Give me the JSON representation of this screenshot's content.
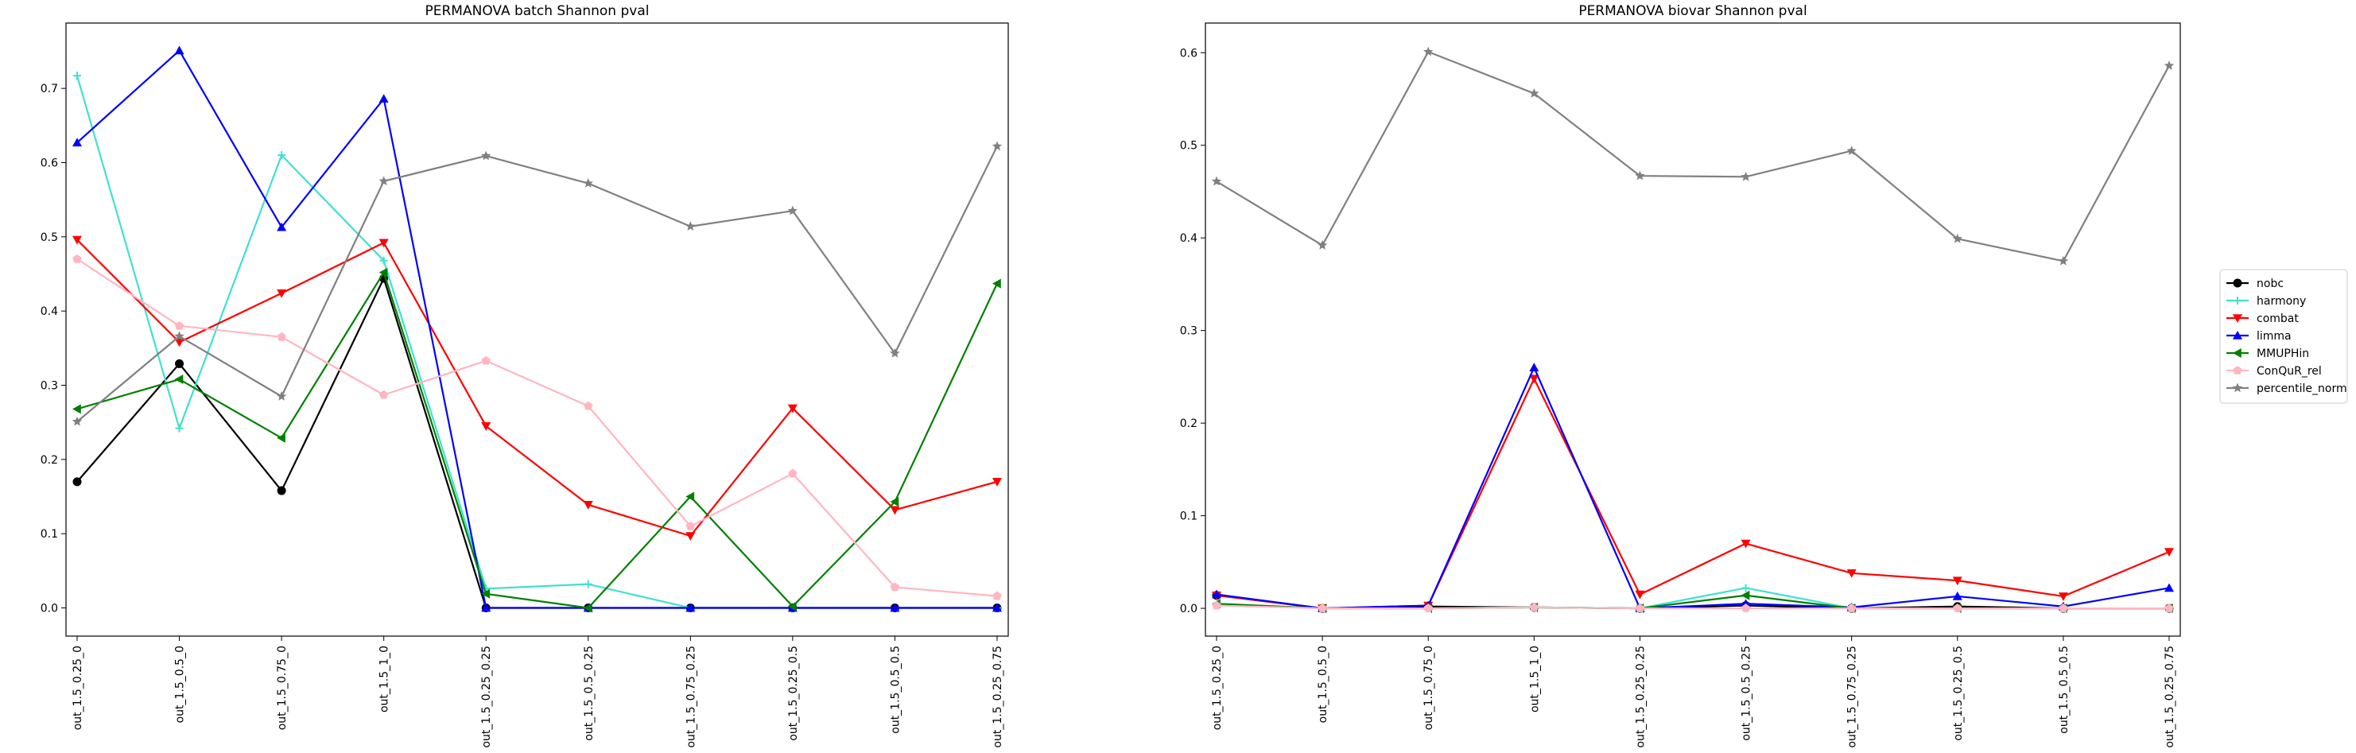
{
  "chart_data": [
    {
      "type": "line",
      "title": "PERMANOVA batch Shannon pval",
      "xlabel": "",
      "ylabel": "",
      "categories": [
        "out_1.5_0.25_0",
        "out_1.5_0.5_0",
        "out_1.5_0.75_0",
        "out_1.5_1_0",
        "out_1.5_0.25_0.25",
        "out_1.5_0.5_0.25",
        "out_1.5_0.75_0.25",
        "out_1.5_0.25_0.5",
        "out_1.5_0.5_0.5",
        "out_1.5_0.25_0.75"
      ],
      "ylim": [
        -0.038,
        0.788
      ],
      "yticks": [
        0.0,
        0.1,
        0.2,
        0.3,
        0.4,
        0.5,
        0.6,
        0.7
      ],
      "grid": false,
      "series": [
        {
          "name": "nobc",
          "values": [
            0.17,
            0.329,
            0.158,
            0.444,
            0.0,
            0.0,
            0.0,
            0.0,
            0.0,
            0.0
          ]
        },
        {
          "name": "harmony",
          "values": [
            0.717,
            0.242,
            0.61,
            0.468,
            0.026,
            0.032,
            0.0,
            0.0,
            0.0,
            0.0
          ]
        },
        {
          "name": "combat",
          "values": [
            0.496,
            0.358,
            0.424,
            0.492,
            0.245,
            0.139,
            0.097,
            0.269,
            0.132,
            0.17
          ]
        },
        {
          "name": "limma",
          "values": [
            0.627,
            0.751,
            0.513,
            0.686,
            0.0,
            0.0,
            0.0,
            0.0,
            0.0,
            0.0
          ]
        },
        {
          "name": "MMUPHin",
          "values": [
            0.268,
            0.308,
            0.229,
            0.452,
            0.019,
            0.0,
            0.15,
            0.002,
            0.143,
            0.437
          ]
        },
        {
          "name": "ConQuR_rel",
          "values": [
            0.47,
            0.38,
            0.365,
            0.287,
            0.333,
            0.272,
            0.11,
            0.181,
            0.028,
            0.016
          ]
        },
        {
          "name": "percentile_norm",
          "values": [
            0.251,
            0.366,
            0.285,
            0.575,
            0.609,
            0.572,
            0.514,
            0.535,
            0.343,
            0.622
          ]
        }
      ]
    },
    {
      "type": "line",
      "title": "PERMANOVA biovar Shannon pval",
      "xlabel": "",
      "ylabel": "",
      "categories": [
        "out_1.5_0.25_0",
        "out_1.5_0.5_0",
        "out_1.5_0.75_0",
        "out_1.5_1_0",
        "out_1.5_0.25_0.25",
        "out_1.5_0.5_0.25",
        "out_1.5_0.75_0.25",
        "out_1.5_0.25_0.5",
        "out_1.5_0.5_0.5",
        "out_1.5_0.25_0.75"
      ],
      "ylim": [
        -0.03,
        0.632
      ],
      "yticks": [
        0.0,
        0.1,
        0.2,
        0.3,
        0.4,
        0.5,
        0.6
      ],
      "grid": false,
      "legend": {
        "placement": "right",
        "entries": [
          "nobc",
          "harmony",
          "combat",
          "limma",
          "MMUPHin",
          "ConQuR_rel",
          "percentile_norm"
        ]
      },
      "series": [
        {
          "name": "nobc",
          "values": [
            0.014,
            0.0,
            0.002,
            0.001,
            0.0,
            0.003,
            0.0,
            0.002,
            0.0,
            0.0
          ]
        },
        {
          "name": "harmony",
          "values": [
            0.004,
            0.0,
            0.0,
            0.001,
            0.0,
            0.022,
            0.0,
            0.0,
            0.0,
            0.0
          ]
        },
        {
          "name": "combat",
          "values": [
            0.014,
            0.0,
            0.003,
            0.248,
            0.015,
            0.07,
            0.038,
            0.03,
            0.013,
            0.061
          ]
        },
        {
          "name": "limma",
          "values": [
            0.015,
            0.0,
            0.003,
            0.26,
            0.0,
            0.005,
            0.001,
            0.013,
            0.002,
            0.022
          ]
        },
        {
          "name": "MMUPHin",
          "values": [
            0.005,
            0.0,
            0.0,
            0.001,
            0.0,
            0.014,
            0.0,
            0.0,
            0.0,
            0.0
          ]
        },
        {
          "name": "ConQuR_rel",
          "values": [
            0.003,
            0.0,
            0.0,
            0.001,
            0.0,
            0.0,
            0.0,
            0.0,
            0.0,
            0.0
          ]
        },
        {
          "name": "percentile_norm",
          "values": [
            0.461,
            0.392,
            0.601,
            0.556,
            0.467,
            0.466,
            0.494,
            0.399,
            0.375,
            0.586
          ]
        }
      ]
    }
  ],
  "series_styles": {
    "nobc": {
      "color": "#000000",
      "marker": "circle"
    },
    "harmony": {
      "color": "#40e0d0",
      "marker": "plus"
    },
    "combat": {
      "color": "#ff0000",
      "marker": "triangle-down"
    },
    "limma": {
      "color": "#0000ff",
      "marker": "triangle-up"
    },
    "MMUPHin": {
      "color": "#008000",
      "marker": "triangle-left"
    },
    "ConQuR_rel": {
      "color": "#ffb6c1",
      "marker": "pentagon"
    },
    "percentile_norm": {
      "color": "#808080",
      "marker": "star"
    }
  }
}
